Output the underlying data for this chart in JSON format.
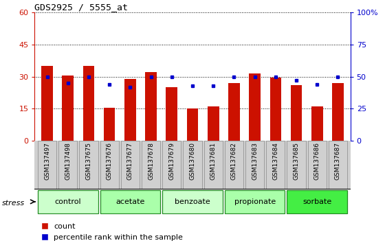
{
  "title": "GDS2925 / 5555_at",
  "samples": [
    "GSM137497",
    "GSM137498",
    "GSM137675",
    "GSM137676",
    "GSM137677",
    "GSM137678",
    "GSM137679",
    "GSM137680",
    "GSM137681",
    "GSM137682",
    "GSM137683",
    "GSM137684",
    "GSM137685",
    "GSM137686",
    "GSM137687"
  ],
  "count_values": [
    35,
    30.5,
    35,
    15.5,
    29,
    32,
    25,
    15,
    16,
    27,
    31.5,
    29.5,
    26,
    16,
    27
  ],
  "percentile_values": [
    50,
    45,
    50,
    44,
    42,
    50,
    50,
    43,
    43,
    50,
    50,
    50,
    47,
    44,
    50
  ],
  "groups": [
    {
      "label": "control",
      "indices": [
        0,
        1,
        2
      ],
      "color": "#ccffcc"
    },
    {
      "label": "acetate",
      "indices": [
        3,
        4,
        5
      ],
      "color": "#aaffaa"
    },
    {
      "label": "benzoate",
      "indices": [
        6,
        7,
        8
      ],
      "color": "#ccffcc"
    },
    {
      "label": "propionate",
      "indices": [
        9,
        10,
        11
      ],
      "color": "#aaffaa"
    },
    {
      "label": "sorbate",
      "indices": [
        12,
        13,
        14
      ],
      "color": "#44ee44"
    }
  ],
  "ylim_left": [
    0,
    60
  ],
  "ylim_right": [
    0,
    100
  ],
  "yticks_left": [
    0,
    15,
    30,
    45,
    60
  ],
  "yticks_right": [
    0,
    25,
    50,
    75,
    100
  ],
  "bar_color": "#cc1100",
  "dot_color": "#0000cc",
  "sample_bg_color": "#d0d0d0",
  "left_tick_color": "#cc1100",
  "right_tick_color": "#0000cc",
  "group_border_color": "#228822"
}
